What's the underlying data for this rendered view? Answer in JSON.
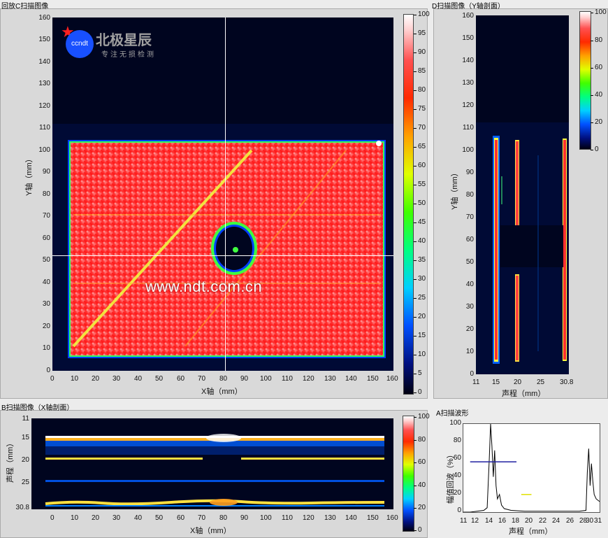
{
  "c_scan": {
    "title": "回放C扫描图像",
    "xlabel": "X轴（mm）",
    "ylabel": "Y轴（mm）",
    "xticks": [
      "0",
      "10",
      "20",
      "30",
      "40",
      "50",
      "60",
      "70",
      "80",
      "90",
      "100",
      "110",
      "120",
      "130",
      "140",
      "150",
      "160"
    ],
    "yticks": [
      "160",
      "150",
      "140",
      "130",
      "120",
      "110",
      "100",
      "90",
      "80",
      "70",
      "60",
      "50",
      "40",
      "30",
      "20",
      "10",
      "0"
    ],
    "colorbar_ticks": [
      "100",
      "95",
      "90",
      "85",
      "80",
      "75",
      "70",
      "65",
      "60",
      "55",
      "50",
      "45",
      "40",
      "35",
      "30",
      "25",
      "20",
      "15",
      "10",
      "5",
      "0"
    ]
  },
  "d_scan": {
    "title": "D扫描图像（Y轴剖面）",
    "xlabel": "声程（mm）",
    "ylabel": "Y轴（mm）",
    "xticks": [
      "11",
      "15",
      "20",
      "25",
      "30.8"
    ],
    "yticks": [
      "160",
      "150",
      "140",
      "130",
      "120",
      "110",
      "100",
      "90",
      "80",
      "70",
      "60",
      "50",
      "40",
      "30",
      "20",
      "10",
      "0"
    ],
    "colorbar_ticks": [
      "100",
      "80",
      "60",
      "40",
      "20",
      "0"
    ]
  },
  "b_scan": {
    "title": "B扫描图像（X轴剖面）",
    "xlabel": "X轴（mm）",
    "ylabel": "声程（mm）",
    "xticks": [
      "0",
      "10",
      "20",
      "30",
      "40",
      "50",
      "60",
      "70",
      "80",
      "90",
      "100",
      "110",
      "120",
      "130",
      "140",
      "150",
      "160"
    ],
    "yticks": [
      "11",
      "15",
      "20",
      "25",
      "30.8"
    ],
    "colorbar_ticks": [
      "100",
      "80",
      "60",
      "40",
      "20",
      "0"
    ]
  },
  "a_scan": {
    "title": "A扫描波形",
    "xlabel": "声程（mm）",
    "ylabel": "幅值回波（%）",
    "xticks": [
      "11",
      "12",
      "14",
      "16",
      "18",
      "20",
      "22",
      "24",
      "26",
      "28",
      "30",
      "31"
    ],
    "yticks": [
      "100",
      "80",
      "60",
      "40",
      "20",
      "0"
    ]
  },
  "logo": {
    "name": "北极星辰",
    "tagline": "专注无损检测",
    "badge": "ccndt"
  },
  "watermark": "www.ndt.com.cn",
  "colors": {
    "plot_background": "#00051f",
    "scan_red": "#ff2020",
    "gate_blue": "#2020a0",
    "gate_yellow": "#e0e000"
  },
  "chart_data": {
    "type": "line",
    "title": "A扫描波形",
    "xlabel": "声程（mm）",
    "ylabel": "幅值回波（%）",
    "xlim": [
      11,
      31
    ],
    "ylim": [
      0,
      100
    ],
    "x": [
      11,
      12,
      13,
      14,
      14.5,
      14.8,
      15.0,
      15.2,
      15.4,
      15.6,
      15.8,
      16.0,
      16.3,
      16.6,
      17,
      18,
      20,
      22,
      24,
      26,
      28,
      29.0,
      29.2,
      29.4,
      29.6,
      29.8,
      30.0,
      30.2,
      30.5,
      31
    ],
    "y": [
      0,
      0,
      1,
      2,
      5,
      60,
      100,
      75,
      40,
      70,
      30,
      15,
      20,
      8,
      4,
      2,
      1,
      1,
      1,
      1,
      1,
      2,
      45,
      72,
      30,
      55,
      35,
      20,
      15,
      12
    ],
    "gates": [
      {
        "x0": 12.0,
        "x1": 18.8,
        "y": 57,
        "color": "#2020a0"
      },
      {
        "x0": 19.5,
        "x1": 21.0,
        "y": 20,
        "color": "#e0e000"
      }
    ]
  }
}
